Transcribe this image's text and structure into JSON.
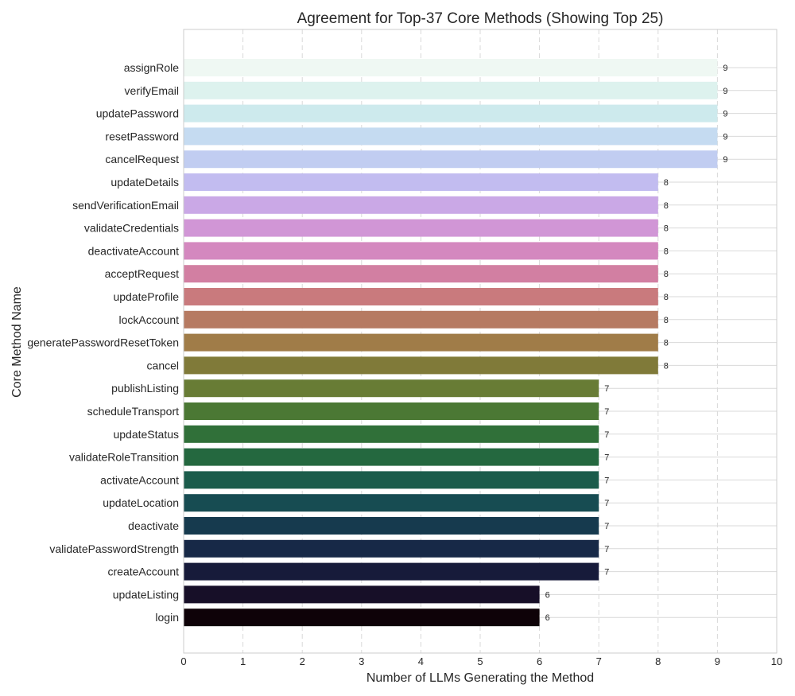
{
  "chart_data": {
    "type": "bar",
    "orientation": "horizontal",
    "title": "Agreement for Top-37 Core Methods (Showing Top 25)",
    "xlabel": "Number of LLMs Generating the Method",
    "ylabel": "Core Method Name",
    "xlim": [
      0,
      10
    ],
    "xticks": [
      0,
      1,
      2,
      3,
      4,
      5,
      6,
      7,
      8,
      9,
      10
    ],
    "grid": true,
    "categories": [
      "assignRole",
      "verifyEmail",
      "updatePassword",
      "resetPassword",
      "cancelRequest",
      "updateDetails",
      "sendVerificationEmail",
      "validateCredentials",
      "deactivateAccount",
      "acceptRequest",
      "updateProfile",
      "lockAccount",
      "generatePasswordResetToken",
      "cancel",
      "publishListing",
      "scheduleTransport",
      "updateStatus",
      "validateRoleTransition",
      "activateAccount",
      "updateLocation",
      "deactivate",
      "validatePasswordStrength",
      "createAccount",
      "updateListing",
      "login"
    ],
    "values": [
      9,
      9,
      9,
      9,
      9,
      8,
      8,
      8,
      8,
      8,
      8,
      8,
      8,
      8,
      7,
      7,
      7,
      7,
      7,
      7,
      7,
      7,
      7,
      6,
      6
    ],
    "colors": [
      "#eff8f3",
      "#ddf2ee",
      "#cdeaed",
      "#c5dbf1",
      "#c1cdf1",
      "#c2bcf0",
      "#caa8e6",
      "#d196d6",
      "#d488bf",
      "#d27fa2",
      "#c97a7d",
      "#b67a62",
      "#a07c48",
      "#807a39",
      "#687c35",
      "#4b7834",
      "#307039",
      "#24683f",
      "#1b5c4b",
      "#174c52",
      "#163a4e",
      "#172947",
      "#171b3a",
      "#170f28",
      "#0e0208"
    ]
  }
}
